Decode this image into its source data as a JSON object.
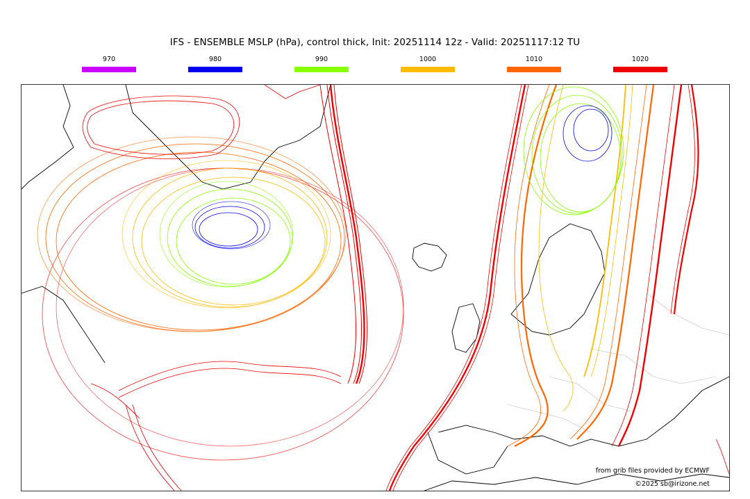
{
  "title": "IFS - ENSEMBLE MSLP (hPa), control thick, Init: 20251114 12z - Valid: 20251117:12 TU",
  "legend": [
    {
      "label": "970",
      "color": "#cc00ff"
    },
    {
      "label": "980",
      "color": "#0000ee"
    },
    {
      "label": "990",
      "color": "#88ff00"
    },
    {
      "label": "1000",
      "color": "#ffbb00"
    },
    {
      "label": "1010",
      "color": "#ff6600"
    },
    {
      "label": "1020",
      "color": "#ee0000"
    }
  ],
  "credits": {
    "source": "from grib files provided by ECMWF",
    "copyright": "©2025 sb@irizone.net"
  }
}
